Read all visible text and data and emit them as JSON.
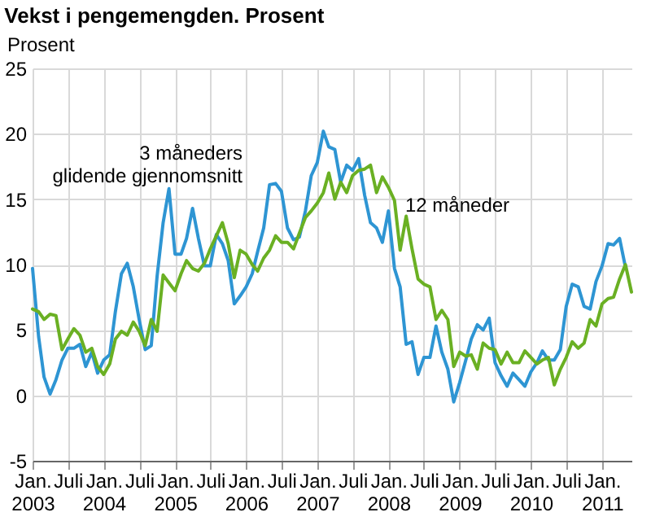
{
  "chart_data": {
    "type": "line",
    "title": "Vekst i pengemengden. Prosent",
    "ylabel": "Prosent",
    "x": [
      "2003-01",
      "2003-02",
      "2003-03",
      "2003-04",
      "2003-05",
      "2003-06",
      "2003-07",
      "2003-08",
      "2003-09",
      "2003-10",
      "2003-11",
      "2003-12",
      "2004-01",
      "2004-02",
      "2004-03",
      "2004-04",
      "2004-05",
      "2004-06",
      "2004-07",
      "2004-08",
      "2004-09",
      "2004-10",
      "2004-11",
      "2004-12",
      "2005-01",
      "2005-02",
      "2005-03",
      "2005-04",
      "2005-05",
      "2005-06",
      "2005-07",
      "2005-08",
      "2005-09",
      "2005-10",
      "2005-11",
      "2005-12",
      "2006-01",
      "2006-02",
      "2006-03",
      "2006-04",
      "2006-05",
      "2006-06",
      "2006-07",
      "2006-08",
      "2006-09",
      "2006-10",
      "2006-11",
      "2006-12",
      "2007-01",
      "2007-02",
      "2007-03",
      "2007-04",
      "2007-05",
      "2007-06",
      "2007-07",
      "2007-08",
      "2007-09",
      "2007-10",
      "2007-11",
      "2007-12",
      "2008-01",
      "2008-02",
      "2008-03",
      "2008-04",
      "2008-05",
      "2008-06",
      "2008-07",
      "2008-08",
      "2008-09",
      "2008-10",
      "2008-11",
      "2008-12",
      "2009-01",
      "2009-02",
      "2009-03",
      "2009-04",
      "2009-05",
      "2009-06",
      "2009-07",
      "2009-08",
      "2009-09",
      "2009-10",
      "2009-11",
      "2009-12",
      "2010-01",
      "2010-02",
      "2010-03",
      "2010-04",
      "2010-05",
      "2010-06",
      "2010-07",
      "2010-08",
      "2010-09",
      "2010-10",
      "2010-11",
      "2010-12",
      "2011-01",
      "2011-02",
      "2011-03",
      "2011-04",
      "2011-05",
      "2011-06"
    ],
    "series": [
      {
        "name": "3 måneders glidende gjennomsnitt",
        "color": "#2e95d3",
        "values": [
          9.7,
          4.5,
          1.4,
          0.1,
          1.2,
          2.7,
          3.6,
          3.6,
          3.9,
          2.2,
          3.3,
          1.7,
          2.7,
          3.1,
          6.4,
          9.3,
          10.1,
          8.3,
          5.8,
          3.5,
          3.8,
          9.1,
          13.2,
          15.8,
          10.8,
          10.8,
          12.0,
          14.3,
          12.0,
          9.9,
          9.9,
          12.3,
          11.6,
          10.3,
          7.0,
          7.6,
          8.3,
          9.3,
          11.0,
          12.8,
          16.1,
          16.2,
          15.6,
          12.8,
          11.9,
          12.1,
          14.1,
          16.8,
          17.8,
          20.2,
          19.0,
          18.8,
          16.3,
          17.6,
          17.2,
          18.1,
          15.3,
          13.2,
          12.8,
          11.7,
          14.1,
          9.7,
          8.3,
          3.9,
          4.1,
          1.6,
          2.9,
          2.9,
          5.3,
          3.3,
          2.0,
          -0.5,
          1.0,
          2.7,
          4.3,
          5.4,
          5.0,
          5.9,
          2.5,
          1.5,
          0.7,
          1.7,
          1.2,
          0.7,
          1.8,
          2.5,
          3.4,
          2.7,
          2.7,
          3.5,
          6.8,
          8.5,
          8.3,
          6.8,
          6.6,
          8.7,
          9.9,
          11.6,
          11.5,
          12.0,
          9.8,
          null
        ]
      },
      {
        "name": "12 måneder",
        "color": "#6ab023",
        "values": [
          6.6,
          6.4,
          5.8,
          6.2,
          6.1,
          3.5,
          4.3,
          5.1,
          4.6,
          3.3,
          3.6,
          2.2,
          1.6,
          2.4,
          4.3,
          4.9,
          4.6,
          5.6,
          4.9,
          3.8,
          5.8,
          4.9,
          9.2,
          8.6,
          8.0,
          9.3,
          10.3,
          9.7,
          9.5,
          10.1,
          11.2,
          12.2,
          13.2,
          11.6,
          9.0,
          11.1,
          10.8,
          10.0,
          9.5,
          10.5,
          11.1,
          12.2,
          11.7,
          11.7,
          11.2,
          12.4,
          13.6,
          14.1,
          14.7,
          15.5,
          17.0,
          15.0,
          16.3,
          15.5,
          16.8,
          17.2,
          17.3,
          17.6,
          15.5,
          16.7,
          15.9,
          14.9,
          11.1,
          13.7,
          11.2,
          8.9,
          8.5,
          8.3,
          5.8,
          6.5,
          5.8,
          2.2,
          3.3,
          3.0,
          3.1,
          2.0,
          4.0,
          3.6,
          3.5,
          2.4,
          3.3,
          2.5,
          2.5,
          3.4,
          2.9,
          2.4,
          2.7,
          2.9,
          0.8,
          2.0,
          2.9,
          4.1,
          3.6,
          4.0,
          5.8,
          5.3,
          7.0,
          7.4,
          7.5,
          8.9,
          10.0,
          7.9
        ]
      }
    ],
    "xlim": [
      "2003-01",
      "2011-06"
    ],
    "xticks": [
      {
        "value": "2003-01",
        "label": "Jan. 2003"
      },
      {
        "value": "2003-07",
        "label": "Juli"
      },
      {
        "value": "2004-01",
        "label": "Jan. 2004"
      },
      {
        "value": "2004-07",
        "label": "Juli"
      },
      {
        "value": "2005-01",
        "label": "Jan. 2005"
      },
      {
        "value": "2005-07",
        "label": "Juli"
      },
      {
        "value": "2006-01",
        "label": "Jan. 2006"
      },
      {
        "value": "2006-07",
        "label": "Juli"
      },
      {
        "value": "2007-01",
        "label": "Jan. 2007"
      },
      {
        "value": "2007-07",
        "label": "Juli"
      },
      {
        "value": "2008-01",
        "label": "Jan. 2008"
      },
      {
        "value": "2008-07",
        "label": "Juli"
      },
      {
        "value": "2009-01",
        "label": "Jan. 2009"
      },
      {
        "value": "2009-07",
        "label": "Juli"
      },
      {
        "value": "2010-01",
        "label": "Jan. 2010"
      },
      {
        "value": "2010-07",
        "label": "Juli"
      },
      {
        "value": "2011-01",
        "label": "Jan. 2011"
      }
    ],
    "ylim": [
      -5,
      25
    ],
    "yticks": [
      -5,
      0,
      5,
      10,
      15,
      20,
      25
    ],
    "grid": true,
    "legend": false,
    "marker": "none",
    "line_style": "solid"
  }
}
